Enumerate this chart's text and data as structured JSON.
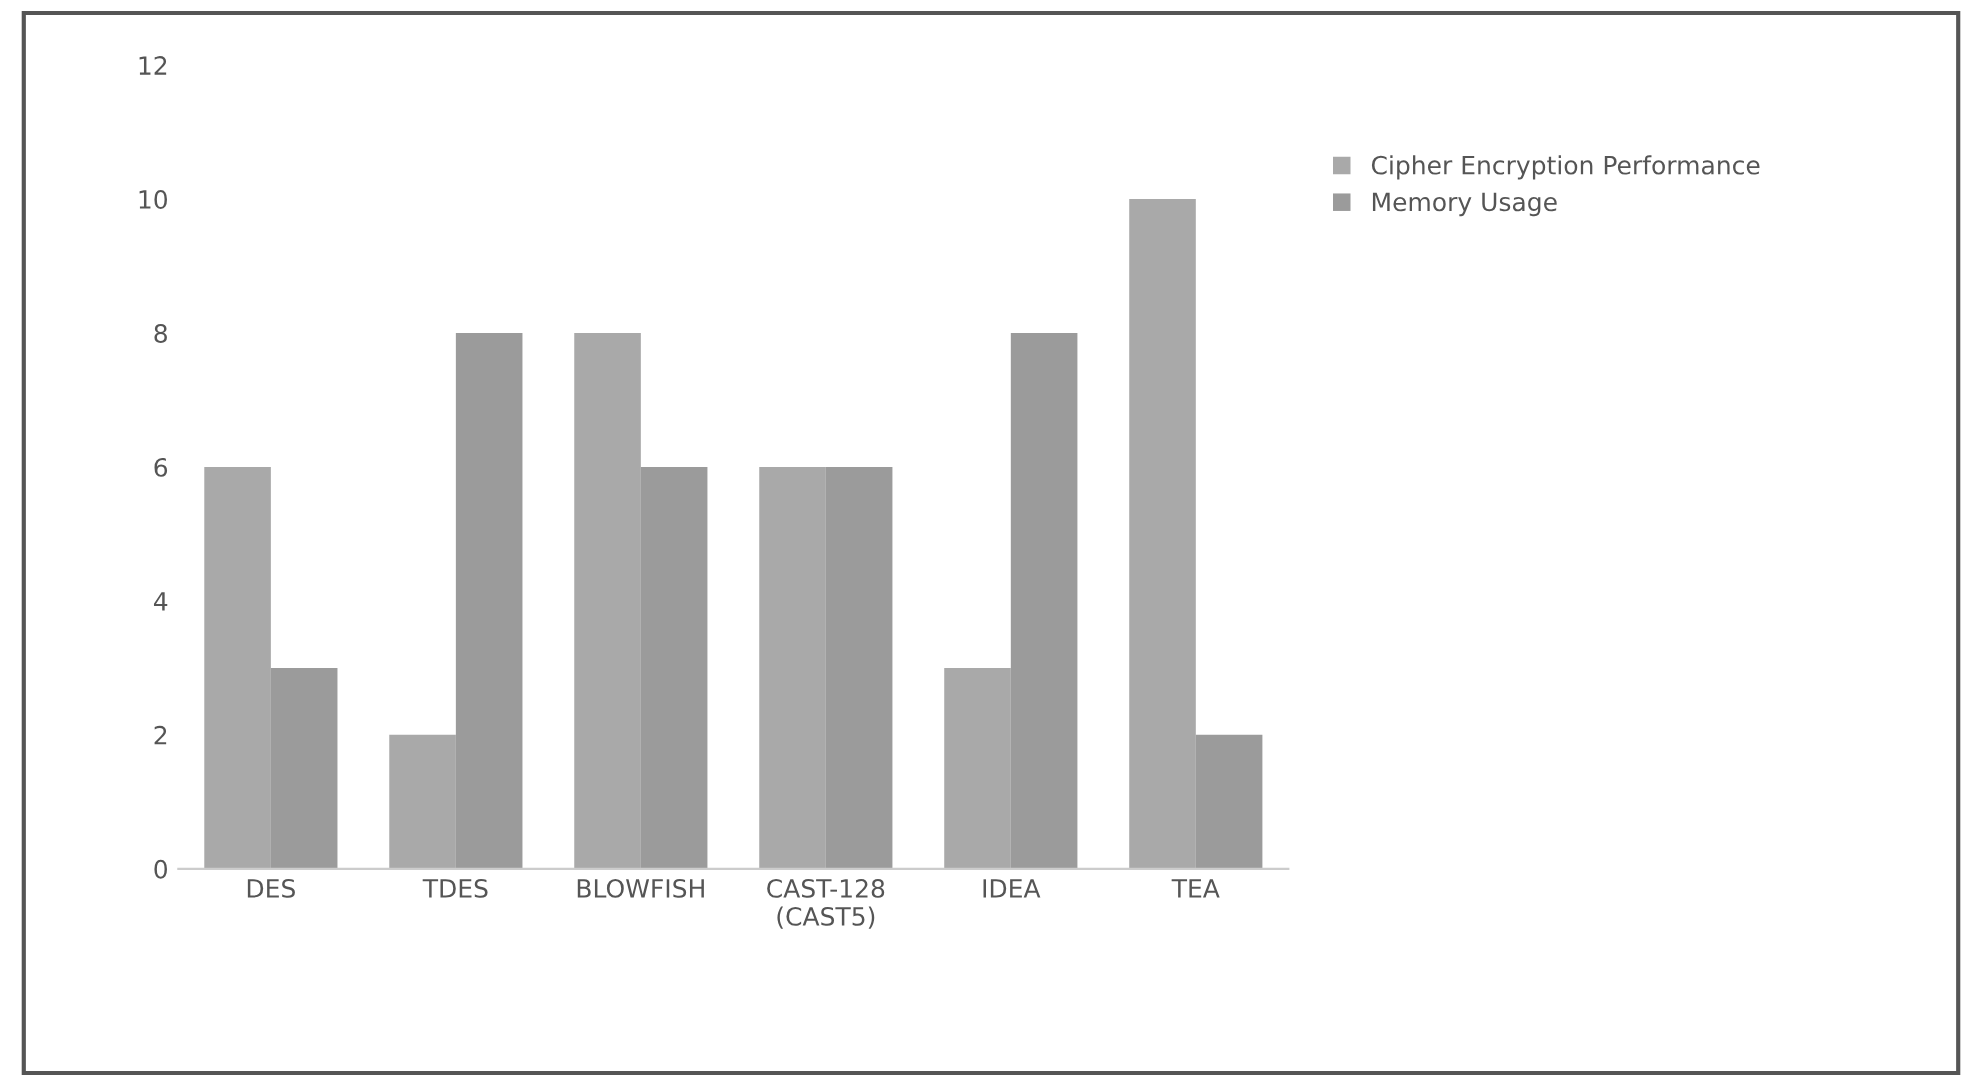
{
  "chart_data": {
    "type": "bar",
    "categories": [
      "DES",
      "TDES",
      "BLOWFISH",
      "CAST-128\n(CAST5)",
      "IDEA",
      "TEA"
    ],
    "series": [
      {
        "name": "Cipher Encryption Performance",
        "color": "#a9a9a9",
        "values": [
          6,
          2,
          8,
          6,
          3,
          10
        ]
      },
      {
        "name": "Memory Usage",
        "color": "#9b9b9b",
        "values": [
          3,
          8,
          6,
          6,
          8,
          2
        ]
      }
    ],
    "ylim": [
      0,
      12
    ],
    "yticks": [
      0,
      2,
      4,
      6,
      8,
      10,
      12
    ],
    "grid": false,
    "legend": "right"
  }
}
